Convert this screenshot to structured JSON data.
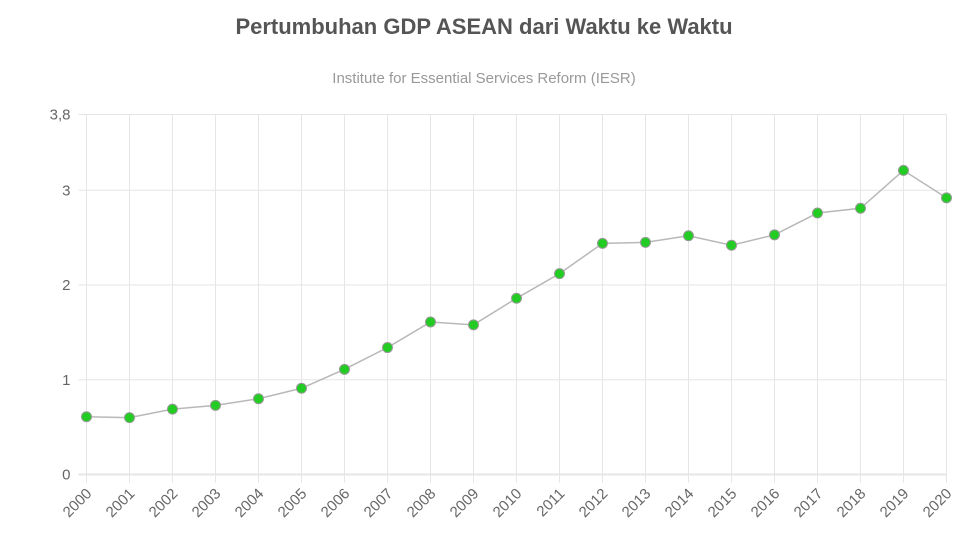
{
  "chart_data": {
    "type": "line",
    "title": "Pertumbuhan GDP ASEAN dari Waktu ke Waktu",
    "subtitle": "Institute for Essential Services Reform (IESR)",
    "xlabel": "",
    "ylabel": "",
    "categories": [
      "2000",
      "2001",
      "2002",
      "2003",
      "2004",
      "2005",
      "2006",
      "2007",
      "2008",
      "2009",
      "2010",
      "2011",
      "2012",
      "2013",
      "2014",
      "2015",
      "2016",
      "2017",
      "2018",
      "2019",
      "2020"
    ],
    "values": [
      0.61,
      0.6,
      0.69,
      0.73,
      0.8,
      0.91,
      1.11,
      1.34,
      1.61,
      1.58,
      1.86,
      2.12,
      2.44,
      2.45,
      2.52,
      2.42,
      2.53,
      2.76,
      2.81,
      3.21,
      2.92
    ],
    "ylim": [
      0,
      3.8
    ],
    "yticks": [
      0,
      1,
      2,
      3,
      3.8
    ],
    "ytick_labels": [
      "0",
      "1",
      "2",
      "3",
      "3,8"
    ],
    "grid": true,
    "legend": "none",
    "colors": {
      "line": "#b8b8b8",
      "point": "#22cc22",
      "point_border": "#999999",
      "grid": "#e6e6e6"
    }
  }
}
